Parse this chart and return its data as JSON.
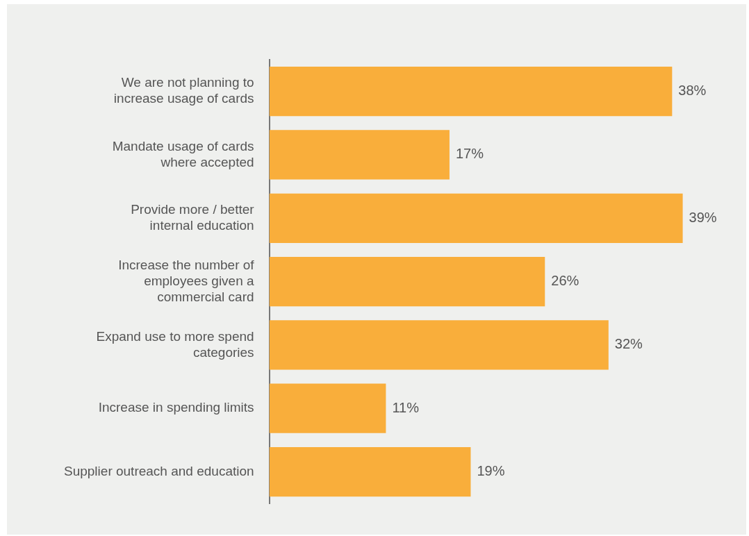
{
  "chart_data": {
    "type": "bar",
    "orientation": "horizontal",
    "categories": [
      "We are not planning to increase usage of cards",
      "Mandate usage of cards where accepted",
      "Provide more / better internal education",
      "Increase the number of employees given a commercial card",
      "Expand use to more spend categories",
      "Increase in spending limits",
      "Supplier outreach and education"
    ],
    "values": [
      38,
      17,
      39,
      26,
      32,
      11,
      19
    ],
    "value_labels": [
      "38%",
      "17%",
      "39%",
      "26%",
      "32%",
      "11%",
      "19%"
    ],
    "color": "#f9ae3b",
    "grid": false,
    "legend": false
  }
}
